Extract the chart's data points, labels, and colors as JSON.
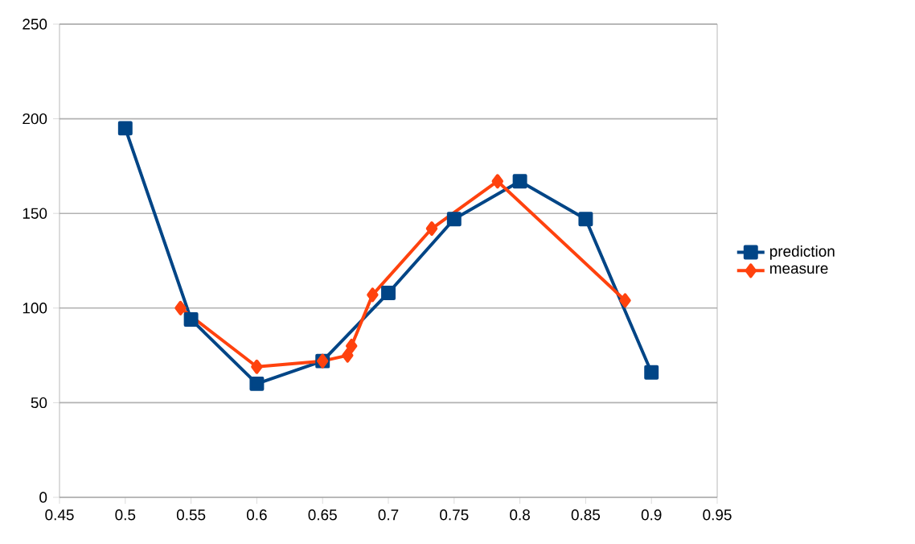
{
  "chart_data": {
    "type": "line",
    "xlim": [
      0.45,
      0.95
    ],
    "xticks": [
      0.45,
      0.5,
      0.55,
      0.6,
      0.65,
      0.7,
      0.75,
      0.8,
      0.85,
      0.9,
      0.95
    ],
    "ylim": [
      0,
      250
    ],
    "yticks": [
      0,
      50,
      100,
      150,
      200,
      250
    ],
    "grid": "y",
    "legend": "right",
    "series": [
      {
        "name": "prediction",
        "color": "#004586",
        "marker": "square",
        "x": [
          0.5,
          0.55,
          0.6,
          0.65,
          0.7,
          0.75,
          0.8,
          0.85,
          0.9
        ],
        "values": [
          195,
          94,
          60,
          72,
          108,
          147,
          167,
          147,
          66
        ]
      },
      {
        "name": "measure",
        "color": "#ff420e",
        "marker": "diamond",
        "x": [
          0.542,
          0.6,
          0.65,
          0.669,
          0.672,
          0.688,
          0.733,
          0.783,
          0.88
        ],
        "values": [
          100,
          69,
          72,
          75,
          80,
          107,
          142,
          167,
          104
        ]
      }
    ]
  }
}
